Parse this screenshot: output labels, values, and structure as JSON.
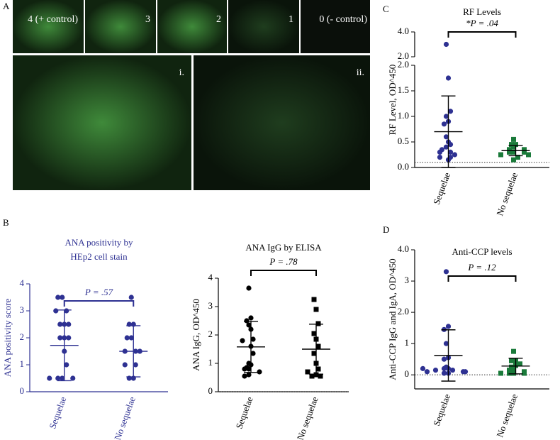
{
  "figure": {
    "panel_labels": [
      "A",
      "B",
      "C",
      "D"
    ],
    "image_labels": [
      "4 (+ control)",
      "3",
      "2",
      "1",
      "0 (- control)",
      "i.",
      "ii."
    ]
  },
  "chart_data": [
    {
      "type": "dot",
      "title": [
        "ANA positivity by",
        "HEp2 cell stain"
      ],
      "y_label": "ANA positivity score",
      "annotation": "P = .57",
      "categories": [
        "Sequelae",
        "No sequelae"
      ],
      "groups": [
        {
          "color": "#2e3192",
          "marker": "circle",
          "values": [
            3.5,
            3.5,
            3,
            3,
            2.5,
            2.5,
            2.5,
            2,
            2,
            2,
            1.5,
            1,
            0.5,
            0.5,
            0.5,
            0.5
          ],
          "mean": 1.72,
          "sd": 1.31
        },
        {
          "color": "#2e3192",
          "marker": "circle",
          "values": [
            3.5,
            2.5,
            2.5,
            2,
            2,
            1.5,
            1.5,
            1.5,
            1,
            1,
            0.5,
            0.5
          ],
          "mean": 1.5,
          "sd": 0.95
        }
      ],
      "y_segments": [
        {
          "ylim": [
            0,
            4
          ],
          "yticks": [
            0,
            1,
            2,
            3,
            4
          ]
        }
      ]
    },
    {
      "type": "dot",
      "title": [
        "ANA IgG by ELISA"
      ],
      "y_label": "ANA IgG, OD^450",
      "annotation": "P = .78",
      "reference_line": 0,
      "categories": [
        "Sequelae",
        "No sequelae"
      ],
      "groups": [
        {
          "color": "#000000",
          "marker": "circle",
          "values": [
            3.65,
            2.6,
            2.5,
            2.35,
            2.2,
            1.85,
            1.8,
            1.6,
            1.35,
            1.0,
            0.95,
            0.85,
            0.8,
            0.8,
            0.7,
            0.6,
            0.55
          ],
          "mean": 1.58,
          "sd": 0.9
        },
        {
          "color": "#000000",
          "marker": "square",
          "values": [
            3.25,
            2.9,
            2.4,
            2.05,
            1.85,
            1.6,
            1.35,
            1.0,
            0.8,
            0.7,
            0.6,
            0.55,
            0.55
          ],
          "mean": 1.5,
          "sd": 0.88
        }
      ],
      "y_segments": [
        {
          "ylim": [
            0,
            4
          ],
          "yticks": [
            0,
            1,
            2,
            3,
            4
          ]
        }
      ]
    },
    {
      "type": "dot",
      "title": [
        "RF Levels"
      ],
      "y_label": "RF Level, OD^450",
      "annotation": "*P = .04",
      "reference_line": 0.1,
      "categories": [
        "Sequelae",
        "No sequelae"
      ],
      "groups": [
        {
          "color": "#2e3192",
          "marker": "circle",
          "values": [
            3.0,
            1.75,
            1.1,
            1.0,
            0.9,
            0.85,
            0.6,
            0.5,
            0.45,
            0.4,
            0.35,
            0.3,
            0.3,
            0.25,
            0.2,
            0.2,
            0.15
          ],
          "mean": 0.7,
          "sd": 0.7
        },
        {
          "color": "#1a7a3a",
          "marker": "square",
          "values": [
            0.55,
            0.45,
            0.45,
            0.4,
            0.35,
            0.35,
            0.3,
            0.3,
            0.3,
            0.25,
            0.25,
            0.2,
            0.15
          ],
          "mean": 0.33,
          "sd": 0.1
        }
      ],
      "y_segments": [
        {
          "ylim": [
            0,
            2
          ],
          "yticks": [
            {
              "value": 0,
              "label": "0.0"
            },
            {
              "value": 0.5,
              "label": "0.5"
            },
            {
              "value": 1,
              "label": "1.0"
            },
            {
              "value": 1.5,
              "label": "1.5"
            },
            {
              "value": 2,
              "label": "2.0"
            }
          ]
        },
        {
          "ylim": [
            2,
            4
          ],
          "yticks": [
            {
              "value": 2,
              "label": "2.0"
            },
            {
              "value": 4,
              "label": "4.0"
            }
          ]
        }
      ]
    },
    {
      "type": "dot",
      "title": [
        "Anti-CCP levels"
      ],
      "y_label": "Anti-CCP IgG and IgA, OD^450",
      "annotation": "P = .12",
      "reference_line": 0,
      "categories": [
        "Sequelae",
        "No sequelae"
      ],
      "groups": [
        {
          "color": "#2e3192",
          "marker": "circle",
          "values": [
            3.3,
            1.55,
            1.45,
            1.0,
            0.55,
            0.5,
            0.25,
            0.2,
            0.2,
            0.15,
            0.15,
            0.1,
            0.1,
            0.05,
            0.05,
            0.1,
            0.2
          ],
          "mean": 0.62,
          "sd": 0.82
        },
        {
          "color": "#1a7a3a",
          "marker": "square",
          "values": [
            0.75,
            0.45,
            0.45,
            0.35,
            0.3,
            0.25,
            0.2,
            0.15,
            0.1,
            0.05,
            0.05,
            0.05,
            0.05
          ],
          "mean": 0.28,
          "sd": 0.25
        }
      ],
      "y_segments": [
        {
          "ylim": [
            -0.45,
            4
          ],
          "yticks": [
            0,
            1,
            {
              "value": 2,
              "label": "2.0"
            },
            3,
            {
              "value": 4,
              "label": "4.0"
            }
          ]
        }
      ]
    }
  ]
}
